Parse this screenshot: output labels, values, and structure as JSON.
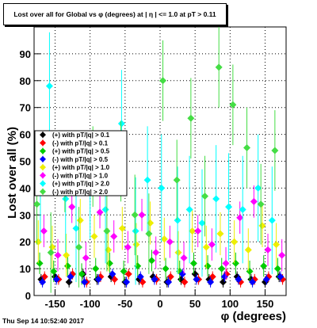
{
  "title": "Lost over all for Global vs φ (degrees) at | η | <= 1.0 at pT > 0.11",
  "footer": "Thu Sep 14 10:52:40 2017",
  "chart_data": {
    "type": "scatter",
    "title": "Lost over all for Global vs φ (degrees) at | η | <= 1.0 at pT > 0.11",
    "xlabel": "φ (degrees)",
    "ylabel": "Lost over all (%)",
    "xlim": [
      -180,
      180
    ],
    "ylim": [
      0,
      100
    ],
    "xticks": [
      -150,
      -100,
      -50,
      0,
      50,
      100,
      150
    ],
    "yticks": [
      0,
      10,
      20,
      30,
      40,
      50,
      60,
      70,
      80,
      90
    ],
    "grid": true,
    "legend_position": "left-middle",
    "series": [
      {
        "name": "(+) with pT/|q| > 0.1",
        "color": "#000000",
        "marker": "diamond",
        "x": [
          -170,
          -150,
          -130,
          -110,
          -90,
          -70,
          -50,
          -30,
          -10,
          10,
          30,
          50,
          70,
          90,
          110,
          130,
          150,
          170
        ],
        "y": [
          6,
          7,
          5,
          8,
          6,
          7,
          5,
          6,
          7,
          5,
          6,
          8,
          6,
          5,
          7,
          6,
          5,
          7
        ],
        "err": [
          2,
          2,
          2,
          2,
          2,
          2,
          2,
          2,
          2,
          2,
          2,
          2,
          2,
          2,
          2,
          2,
          2,
          2
        ]
      },
      {
        "name": "(-) with pT/|q| > 0.1",
        "color": "#ff0000",
        "marker": "diamond",
        "x": [
          -165,
          -145,
          -125,
          -105,
          -85,
          -65,
          -45,
          -25,
          -5,
          15,
          35,
          55,
          75,
          95,
          115,
          135,
          155,
          175
        ],
        "y": [
          7,
          6,
          8,
          5,
          7,
          6,
          8,
          5,
          6,
          7,
          5,
          6,
          7,
          8,
          5,
          6,
          7,
          6
        ],
        "err": [
          2,
          2,
          2,
          2,
          2,
          2,
          2,
          2,
          2,
          2,
          2,
          2,
          2,
          2,
          2,
          2,
          2,
          2
        ]
      },
      {
        "name": "(+) with pT/|q| > 0.5",
        "color": "#00cc00",
        "marker": "diamond",
        "x": [
          -172,
          -152,
          -132,
          -112,
          -92,
          -72,
          -52,
          -32,
          -12,
          8,
          28,
          48,
          68,
          88,
          108,
          128,
          148,
          168
        ],
        "y": [
          12,
          9,
          11,
          8,
          10,
          12,
          9,
          11,
          13,
          10,
          9,
          12,
          11,
          10,
          12,
          9,
          11,
          10
        ],
        "err": [
          4,
          4,
          4,
          4,
          4,
          4,
          4,
          4,
          4,
          4,
          4,
          4,
          4,
          4,
          4,
          4,
          4,
          4
        ]
      },
      {
        "name": "(-) with pT/|q| > 0.5",
        "color": "#0000ff",
        "marker": "diamond",
        "x": [
          -168,
          -148,
          -128,
          -108,
          -88,
          -68,
          -48,
          -28,
          -8,
          12,
          32,
          52,
          72,
          92,
          112,
          132,
          152,
          172
        ],
        "y": [
          5,
          6,
          7,
          5,
          6,
          8,
          5,
          7,
          6,
          5,
          8,
          6,
          5,
          7,
          6,
          5,
          6,
          7
        ],
        "err": [
          2,
          2,
          2,
          2,
          2,
          2,
          2,
          2,
          2,
          2,
          2,
          2,
          2,
          2,
          2,
          2,
          2,
          2
        ]
      },
      {
        "name": "(+) with pT/|q| > 1.0",
        "color": "#eeee00",
        "marker": "diamond",
        "x": [
          -174,
          -154,
          -134,
          -114,
          -94,
          -74,
          -54,
          -34,
          -14,
          6,
          26,
          46,
          66,
          86,
          106,
          126,
          146,
          166
        ],
        "y": [
          20,
          18,
          15,
          28,
          22,
          17,
          25,
          19,
          27,
          21,
          16,
          24,
          18,
          23,
          20,
          17,
          26,
          19
        ],
        "err": [
          8,
          8,
          8,
          8,
          8,
          8,
          8,
          8,
          8,
          8,
          8,
          8,
          8,
          8,
          8,
          8,
          8,
          8
        ]
      },
      {
        "name": "(-) with pT/|q| > 1.0",
        "color": "#ff00ff",
        "marker": "diamond",
        "x": [
          -166,
          -146,
          -126,
          -106,
          -86,
          -66,
          -46,
          -26,
          -6,
          14,
          34,
          54,
          74,
          94,
          114,
          134,
          154,
          174
        ],
        "y": [
          24,
          15,
          33,
          14,
          31,
          22,
          18,
          30,
          16,
          20,
          14,
          24,
          19,
          12,
          29,
          35,
          17,
          15
        ],
        "err": [
          6,
          6,
          6,
          6,
          6,
          6,
          6,
          6,
          6,
          6,
          6,
          6,
          6,
          6,
          6,
          6,
          6,
          6
        ]
      },
      {
        "name": "(+) with pT/|q| > 2.0",
        "color": "#00ffff",
        "marker": "diamond",
        "x": [
          -171,
          -158,
          -135,
          -120,
          -100,
          -78,
          -55,
          -35,
          -18,
          2,
          25,
          42,
          60,
          80,
          98,
          118,
          140,
          160
        ],
        "y": [
          40,
          78,
          36,
          25,
          41,
          32,
          64,
          24,
          43,
          40,
          28,
          32,
          27,
          36,
          33,
          32,
          40,
          28
        ],
        "err": [
          20,
          20,
          20,
          20,
          20,
          20,
          20,
          20,
          20,
          20,
          20,
          20,
          20,
          20,
          20,
          20,
          20,
          20
        ]
      },
      {
        "name": "(-) with pT/|q| > 2.0",
        "color": "#44dd44",
        "marker": "diamond",
        "x": [
          -176,
          -156,
          -136,
          -116,
          -96,
          -76,
          -56,
          -36,
          -16,
          4,
          24,
          44,
          64,
          84,
          104,
          124,
          144,
          164
        ],
        "y": [
          34,
          16,
          46,
          18,
          48,
          24,
          50,
          30,
          23,
          80,
          43,
          66,
          37,
          85,
          71,
          55,
          34,
          54
        ],
        "err": [
          15,
          15,
          15,
          15,
          15,
          15,
          15,
          15,
          15,
          15,
          15,
          15,
          15,
          15,
          15,
          15,
          15,
          15
        ]
      }
    ]
  }
}
